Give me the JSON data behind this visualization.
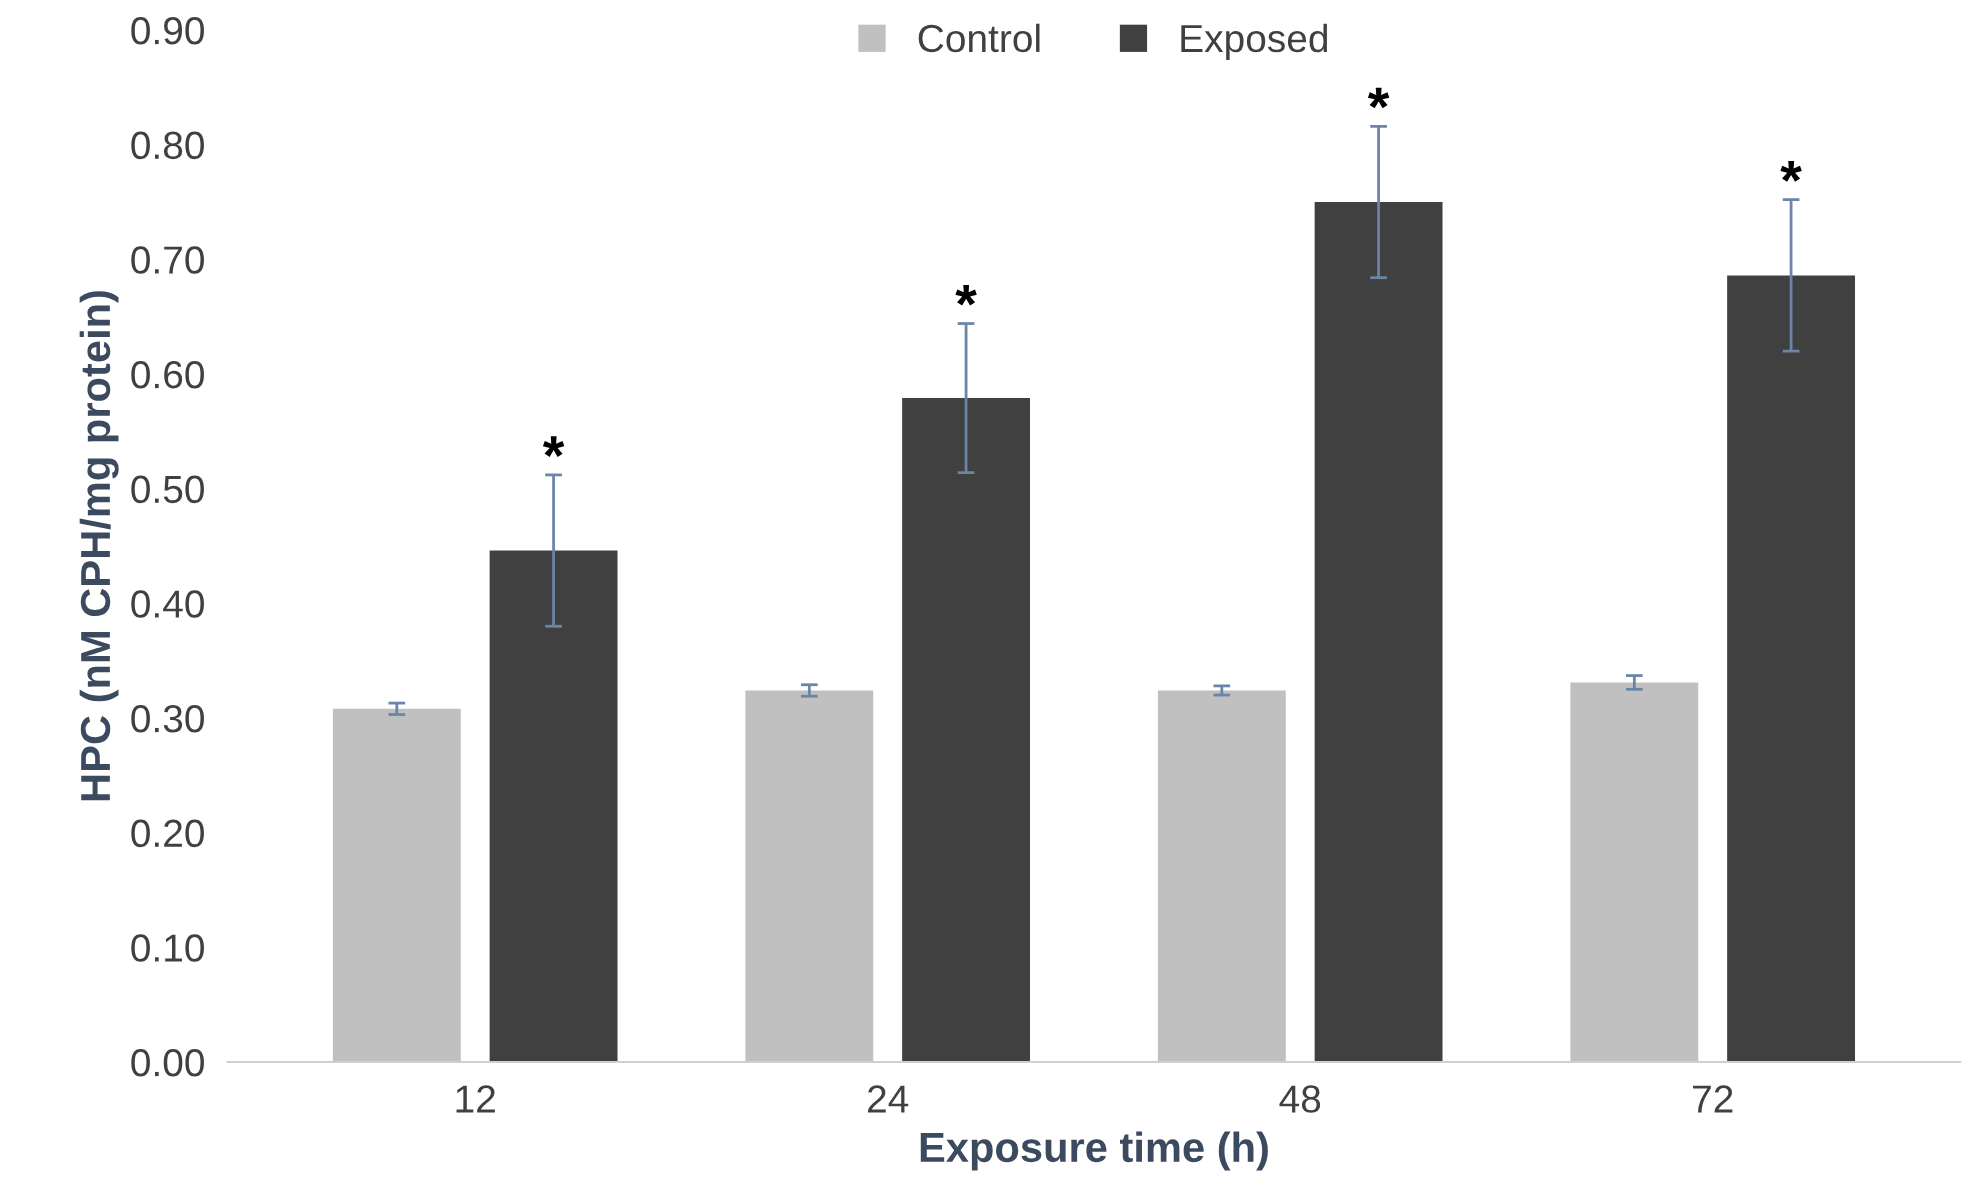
{
  "chart_data": {
    "type": "bar",
    "xlabel": "Exposure time (h)",
    "ylabel": "HPC (nM CPH/mg protein)",
    "categories": [
      "12",
      "24",
      "48",
      "72"
    ],
    "series": [
      {
        "name": "Control",
        "color": "#c0c0c0",
        "values": [
          0.308,
          0.324,
          0.324,
          0.331
        ],
        "errors": [
          0.005,
          0.005,
          0.004,
          0.006
        ]
      },
      {
        "name": "Exposed",
        "color": "#404040",
        "values": [
          0.446,
          0.579,
          0.75,
          0.686
        ],
        "errors": [
          0.066,
          0.065,
          0.066,
          0.066
        ]
      }
    ],
    "ylim": [
      0,
      0.9
    ],
    "yticks": [
      {
        "value": 0,
        "label": "0.00"
      },
      {
        "value": 0.1,
        "label": "0.10"
      },
      {
        "value": 0.2,
        "label": "0.20"
      },
      {
        "value": 0.3,
        "label": "0.30"
      },
      {
        "value": 0.4,
        "label": "0.40"
      },
      {
        "value": 0.5,
        "label": "0.50"
      },
      {
        "value": 0.6,
        "label": "0.60"
      },
      {
        "value": 0.7,
        "label": "0.70"
      },
      {
        "value": 0.8,
        "label": "0.80"
      },
      {
        "value": 0.9,
        "label": "0.90"
      }
    ],
    "annotations": [
      "*",
      "*",
      "*",
      "*"
    ],
    "grid": false,
    "legend": "top"
  }
}
